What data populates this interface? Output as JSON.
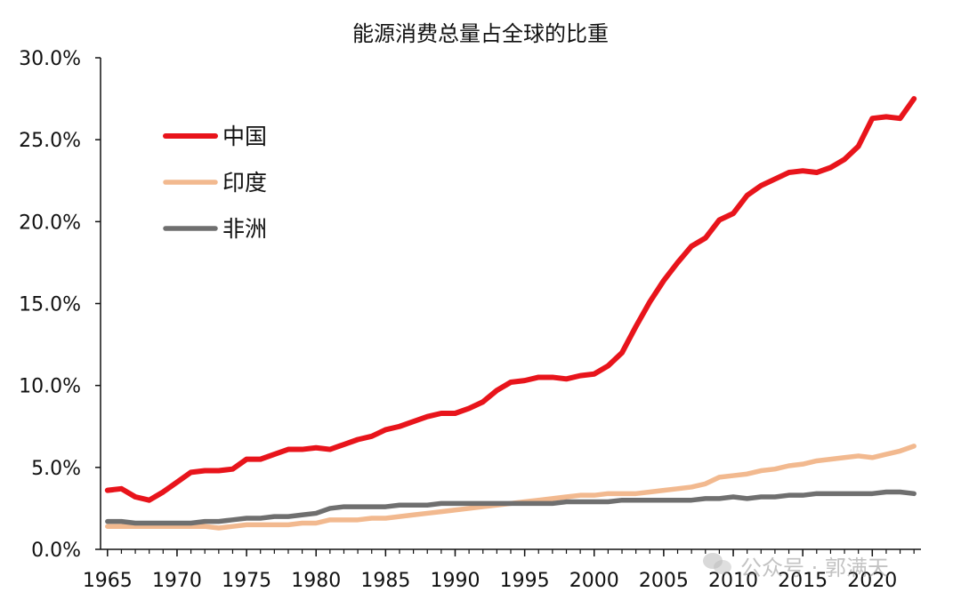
{
  "chart_data": {
    "type": "line",
    "title": "能源消费总量占全球的比重",
    "xlabel": "",
    "ylabel": "",
    "x": [
      1965,
      1966,
      1967,
      1968,
      1969,
      1970,
      1971,
      1972,
      1973,
      1974,
      1975,
      1976,
      1977,
      1978,
      1979,
      1980,
      1981,
      1982,
      1983,
      1984,
      1985,
      1986,
      1987,
      1988,
      1989,
      1990,
      1991,
      1992,
      1993,
      1994,
      1995,
      1996,
      1997,
      1998,
      1999,
      2000,
      2001,
      2002,
      2003,
      2004,
      2005,
      2006,
      2007,
      2008,
      2009,
      2010,
      2011,
      2012,
      2013,
      2014,
      2015,
      2016,
      2017,
      2018,
      2019,
      2020,
      2021,
      2022,
      2023
    ],
    "xlim": [
      1964.5,
      2023.5
    ],
    "ylim": [
      0,
      30
    ],
    "x_ticks": [
      1965,
      1970,
      1975,
      1980,
      1985,
      1990,
      1995,
      2000,
      2005,
      2010,
      2015,
      2020
    ],
    "y_ticks": [
      0,
      5,
      10,
      15,
      20,
      25,
      30
    ],
    "y_tick_labels": [
      "0.0%",
      "5.0%",
      "10.0%",
      "15.0%",
      "20.0%",
      "25.0%",
      "30.0%"
    ],
    "grid": false,
    "legend_position": "top-left",
    "series": [
      {
        "name": "中国",
        "color": "#e8141b",
        "values": [
          3.6,
          3.7,
          3.2,
          3.0,
          3.5,
          4.1,
          4.7,
          4.8,
          4.8,
          4.9,
          5.5,
          5.5,
          5.8,
          6.1,
          6.1,
          6.2,
          6.1,
          6.4,
          6.7,
          6.9,
          7.3,
          7.5,
          7.8,
          8.1,
          8.3,
          8.3,
          8.6,
          9.0,
          9.7,
          10.2,
          10.3,
          10.5,
          10.5,
          10.4,
          10.6,
          10.7,
          11.2,
          12.0,
          13.6,
          15.1,
          16.4,
          17.5,
          18.5,
          19.0,
          20.1,
          20.5,
          21.6,
          22.2,
          22.6,
          23.0,
          23.1,
          23.0,
          23.3,
          23.8,
          24.6,
          26.3,
          26.4,
          26.3,
          27.5
        ]
      },
      {
        "name": "印度",
        "color": "#f2b98f",
        "values": [
          1.4,
          1.4,
          1.4,
          1.4,
          1.4,
          1.4,
          1.4,
          1.4,
          1.3,
          1.4,
          1.5,
          1.5,
          1.5,
          1.5,
          1.6,
          1.6,
          1.8,
          1.8,
          1.8,
          1.9,
          1.9,
          2.0,
          2.1,
          2.2,
          2.3,
          2.4,
          2.5,
          2.6,
          2.7,
          2.8,
          2.9,
          3.0,
          3.1,
          3.2,
          3.3,
          3.3,
          3.4,
          3.4,
          3.4,
          3.5,
          3.6,
          3.7,
          3.8,
          4.0,
          4.4,
          4.5,
          4.6,
          4.8,
          4.9,
          5.1,
          5.2,
          5.4,
          5.5,
          5.6,
          5.7,
          5.6,
          5.8,
          6.0,
          6.3
        ]
      },
      {
        "name": "非洲",
        "color": "#6f6f6f",
        "values": [
          1.7,
          1.7,
          1.6,
          1.6,
          1.6,
          1.6,
          1.6,
          1.7,
          1.7,
          1.8,
          1.9,
          1.9,
          2.0,
          2.0,
          2.1,
          2.2,
          2.5,
          2.6,
          2.6,
          2.6,
          2.6,
          2.7,
          2.7,
          2.7,
          2.8,
          2.8,
          2.8,
          2.8,
          2.8,
          2.8,
          2.8,
          2.8,
          2.8,
          2.9,
          2.9,
          2.9,
          2.9,
          3.0,
          3.0,
          3.0,
          3.0,
          3.0,
          3.0,
          3.1,
          3.1,
          3.2,
          3.1,
          3.2,
          3.2,
          3.3,
          3.3,
          3.4,
          3.4,
          3.4,
          3.4,
          3.4,
          3.5,
          3.5,
          3.4
        ]
      }
    ]
  },
  "watermark": {
    "text": "公众号 · 郭满天",
    "icon": "wechat-icon"
  }
}
